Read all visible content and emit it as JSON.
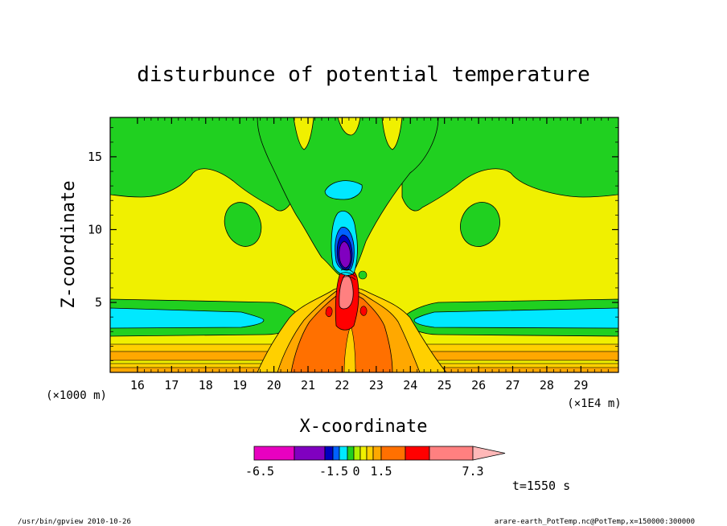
{
  "chart_data": {
    "type": "heatmap",
    "title": "disturbunce of potential temperature",
    "xlabel": "X-coordinate",
    "ylabel": "Z-coordinate",
    "x_unit_left": "(×1000 m)",
    "x_unit_right": "(×1E4 m)",
    "xlim": [
      15.2,
      30.1
    ],
    "ylim": [
      0.2,
      17.7
    ],
    "x_ticks": [
      "16",
      "17",
      "18",
      "19",
      "20",
      "21",
      "22",
      "23",
      "24",
      "25",
      "26",
      "27",
      "28",
      "29"
    ],
    "y_ticks": [
      "5",
      "10",
      "15"
    ],
    "colorbar": {
      "colors": [
        "#e800c0",
        "#8000c0",
        "#0000c0",
        "#0060ff",
        "#00e8ff",
        "#20d020",
        "#b0f000",
        "#f0f000",
        "#ffd000",
        "#ffa800",
        "#ff7000",
        "#ff0000",
        "#ff8080",
        "#ffb8b8"
      ],
      "labels": [
        "-6.5",
        "-1.5",
        "0",
        "1.5",
        "7.3"
      ]
    },
    "time_label": "t=1550 s",
    "levels_note": "disturbance of potential temperature contours"
  },
  "footer": {
    "program": "/usr/bin/gpview   2010-10-26",
    "source": "arare-earth_PotTemp.nc@PotTemp,x=150000:300000"
  }
}
